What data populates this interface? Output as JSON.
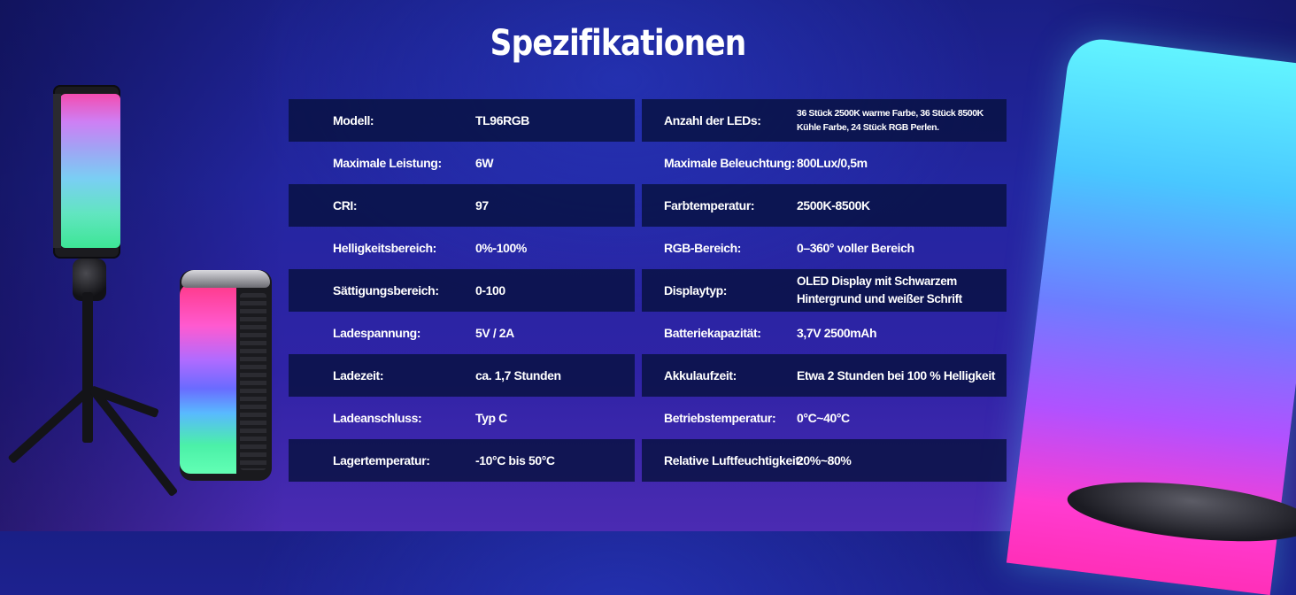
{
  "title": "Spezifikationen",
  "specs": {
    "left": [
      {
        "label": "Modell:",
        "value": "TL96RGB"
      },
      {
        "label": "Maximale Leistung:",
        "value": "6W"
      },
      {
        "label": "CRI:",
        "value": "97"
      },
      {
        "label": "Helligkeitsbereich:",
        "value": "0%-100%"
      },
      {
        "label": "Sättigungsbereich:",
        "value": "0-100"
      },
      {
        "label": "Ladespannung:",
        "value": "5V / 2A"
      },
      {
        "label": "Ladezeit:",
        "value": "ca. 1,7 Stunden"
      },
      {
        "label": "Ladeanschluss:",
        "value": "Typ C"
      },
      {
        "label": "Lagertemperatur:",
        "value": "-10°C bis 50°C"
      }
    ],
    "right": [
      {
        "label": "Anzahl der LEDs:",
        "value": "36 Stück 2500K warme Farbe, 36 Stück 8500K Kühle Farbe, 24 Stück RGB Perlen."
      },
      {
        "label": "Maximale Beleuchtung:",
        "value": "800Lux/0,5m"
      },
      {
        "label": "Farbtemperatur:",
        "value": "2500K-8500K"
      },
      {
        "label": "RGB-Bereich:",
        "value": "0–360° voller Bereich"
      },
      {
        "label": "Displaytyp:",
        "value": "OLED Display mit Schwarzem Hintergrund und weißer Schrift"
      },
      {
        "label": "Batteriekapazität:",
        "value": "3,7V 2500mAh"
      },
      {
        "label": "Akkulaufzeit:",
        "value": "Etwa 2 Stunden bei 100 % Helligkeit"
      },
      {
        "label": "Betriebstemperatur:",
        "value": "0°C~40°C"
      },
      {
        "label": "Relative Luftfeuchtigkeit:",
        "value": "20%~80%"
      }
    ]
  }
}
